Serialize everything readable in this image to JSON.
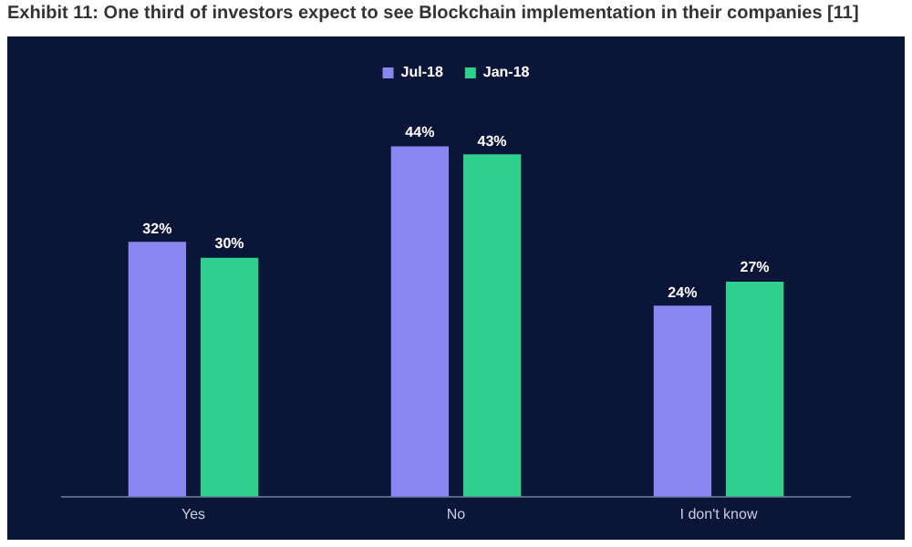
{
  "chart_data": {
    "type": "bar",
    "title": "Exhibit 11: One third of investors expect to see Blockchain implementation in their companies [11]",
    "categories": [
      "Yes",
      "No",
      "I don't know"
    ],
    "series": [
      {
        "name": "Jul-18",
        "color": "#8a86f0",
        "values": [
          32,
          44,
          24
        ],
        "value_labels": [
          "32%",
          "44%",
          "24%"
        ]
      },
      {
        "name": "Jan-18",
        "color": "#2fcf8d",
        "values": [
          30,
          43,
          27
        ],
        "value_labels": [
          "30%",
          "43%",
          "27%"
        ]
      }
    ],
    "legend": "top",
    "grid": false
  }
}
